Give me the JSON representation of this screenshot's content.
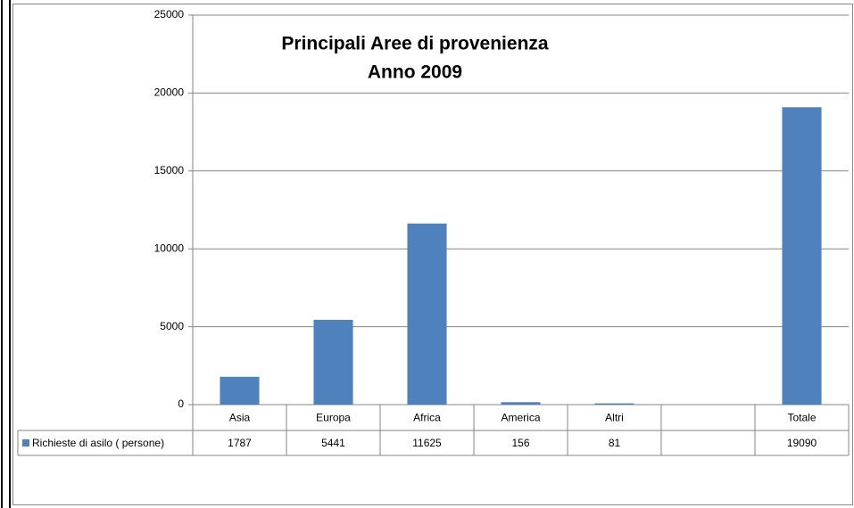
{
  "chart_data": {
    "type": "bar",
    "title": "Principali Aree di provenienza",
    "subtitle": "Anno 2009",
    "categories": [
      "Asia",
      "Europa",
      "Africa",
      "America",
      "Altri",
      null,
      "Totale"
    ],
    "series": [
      {
        "name": "Richieste di asilo ( persone)",
        "color": "#4f81bd",
        "values": [
          1787,
          5441,
          11625,
          156,
          81,
          null,
          19090
        ]
      }
    ],
    "ylim": [
      0,
      25000
    ],
    "yticks": [
      0,
      5000,
      10000,
      15000,
      20000,
      25000
    ],
    "grid": true
  }
}
